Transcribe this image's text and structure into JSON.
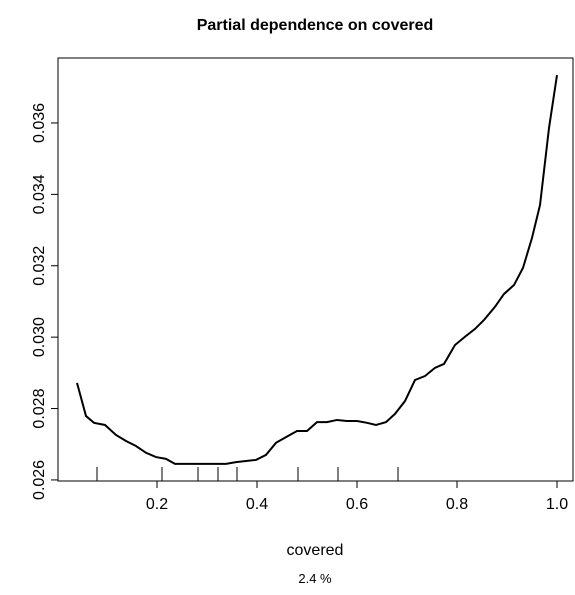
{
  "chart_data": {
    "type": "line",
    "title": "Partial dependence on covered",
    "x_label": "covered",
    "subtitle": "2.4 %",
    "x": [
      0.04,
      0.058,
      0.074,
      0.096,
      0.118,
      0.138,
      0.158,
      0.178,
      0.198,
      0.218,
      0.236,
      0.258,
      0.296,
      0.338,
      0.358,
      0.378,
      0.398,
      0.418,
      0.438,
      0.458,
      0.48,
      0.5,
      0.52,
      0.54,
      0.56,
      0.58,
      0.6,
      0.62,
      0.638,
      0.658,
      0.676,
      0.696,
      0.716,
      0.736,
      0.756,
      0.774,
      0.796,
      0.816,
      0.836,
      0.854,
      0.876,
      0.894,
      0.914,
      0.932,
      0.95,
      0.966,
      0.984,
      1.0
    ],
    "series": [
      {
        "color": "#000000",
        "values": [
          0.02872,
          0.02779,
          0.0276,
          0.02754,
          0.02726,
          0.02709,
          0.02695,
          0.02676,
          0.02664,
          0.02659,
          0.02645,
          0.02645,
          0.02645,
          0.02645,
          0.0265,
          0.02653,
          0.02656,
          0.0267,
          0.02704,
          0.0272,
          0.02737,
          0.02737,
          0.02762,
          0.02762,
          0.02768,
          0.02765,
          0.02765,
          0.0276,
          0.02754,
          0.02762,
          0.02785,
          0.02821,
          0.0288,
          0.02891,
          0.02914,
          0.02925,
          0.02978,
          0.03001,
          0.03023,
          0.03048,
          0.03085,
          0.03121,
          0.03146,
          0.03194,
          0.03278,
          0.0337,
          0.03586,
          0.03734
        ]
      }
    ],
    "rug": [
      0.08,
      0.21,
      0.282,
      0.322,
      0.36,
      0.482,
      0.562,
      0.682
    ],
    "xlim": [
      0.002,
      1.032
    ],
    "ylim": [
      0.02597,
      0.03782
    ],
    "xticks": [
      0.2,
      0.4,
      0.6,
      0.8,
      {
        "value": 1.0,
        "label": "1.0"
      }
    ],
    "yticks": [
      0.026,
      0.028,
      {
        "value": 0.03,
        "label": "0.030"
      },
      0.032,
      0.034,
      0.036
    ]
  }
}
